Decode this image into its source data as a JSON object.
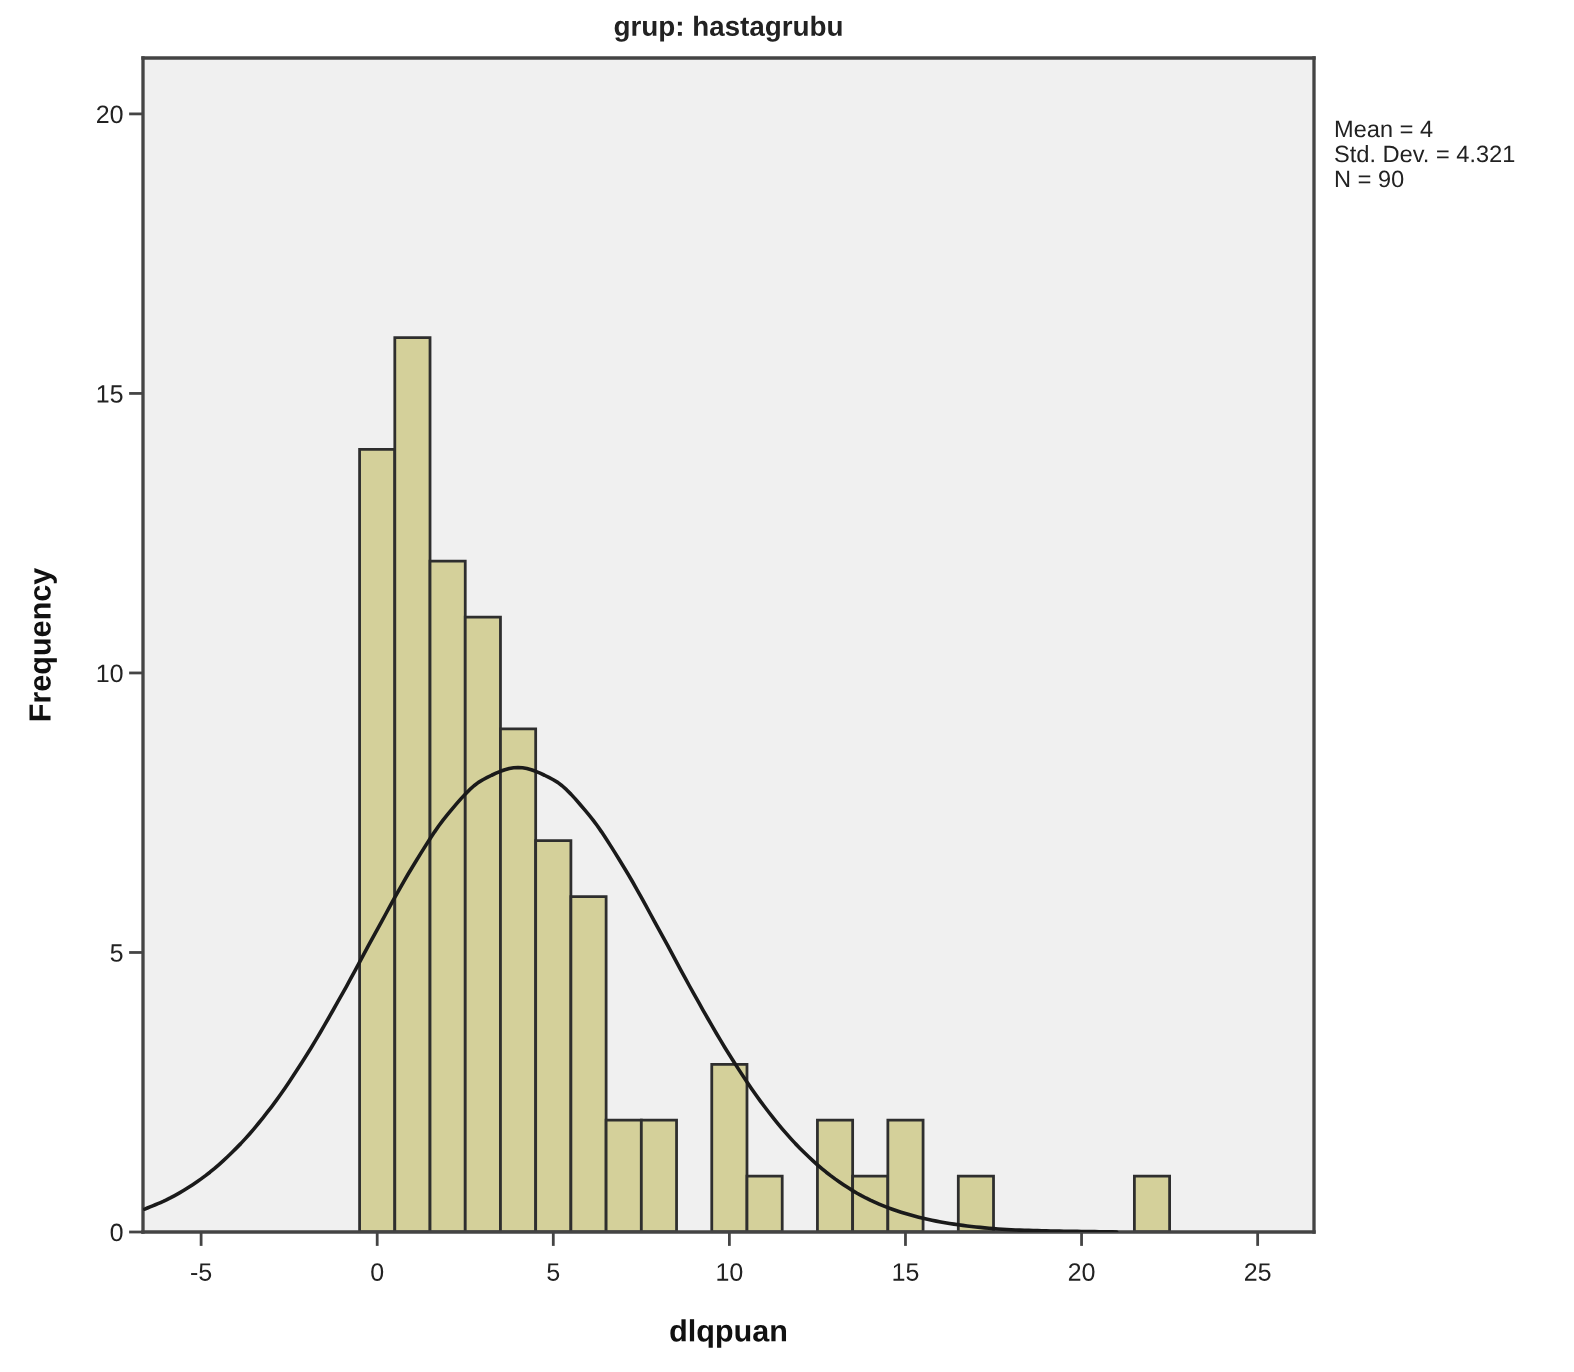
{
  "chart_data": {
    "type": "histogram",
    "title": "grup: hastagrubu",
    "xlabel": "dlqpuan",
    "ylabel": "Frequency",
    "bins": [
      -0.5,
      0.5,
      1.5,
      2.5,
      3.5,
      4.5,
      5.5,
      6.5,
      7.5,
      8.5,
      9.5,
      10.5,
      11.5,
      12.5,
      13.5,
      14.5,
      15.5,
      16.5,
      17.5,
      18.5,
      19.5,
      20.5,
      21.5,
      22.5
    ],
    "values": [
      14,
      16,
      12,
      11,
      9,
      7,
      6,
      2,
      2,
      0,
      3,
      1,
      0,
      2,
      1,
      2,
      0,
      1,
      0,
      0,
      0,
      0,
      1
    ],
    "color": "#d4d09a",
    "series": [
      {
        "type": "line",
        "color": "#1a1a1a",
        "x": [
          -6.6,
          -6,
          -5,
          -4,
          -3,
          -2,
          -1,
          0,
          1,
          2,
          3,
          4,
          5,
          6,
          7,
          8,
          9,
          10,
          11,
          12,
          13,
          14,
          15,
          16,
          17,
          18,
          19,
          20,
          21
        ],
        "values": [
          0.41,
          0.57,
          0.95,
          1.5,
          2.24,
          3.17,
          4.25,
          5.41,
          6.53,
          7.47,
          8.09,
          8.31,
          8.09,
          7.47,
          6.53,
          5.41,
          4.25,
          3.17,
          2.24,
          1.5,
          0.95,
          0.57,
          0.33,
          0.18,
          0.09,
          0.04,
          0.02,
          0.01,
          0.0
        ]
      }
    ],
    "xlim": [
      -6.65,
      26.6
    ],
    "ylim": [
      0,
      21
    ],
    "xticks": [
      -5,
      0,
      5,
      10,
      15,
      20,
      25
    ],
    "yticks": [
      0,
      5,
      10,
      15,
      20
    ],
    "grid": false,
    "legend": false,
    "annotations": [
      "Mean = 4",
      "Std. Dev. = 4.321",
      "N = 90"
    ]
  }
}
